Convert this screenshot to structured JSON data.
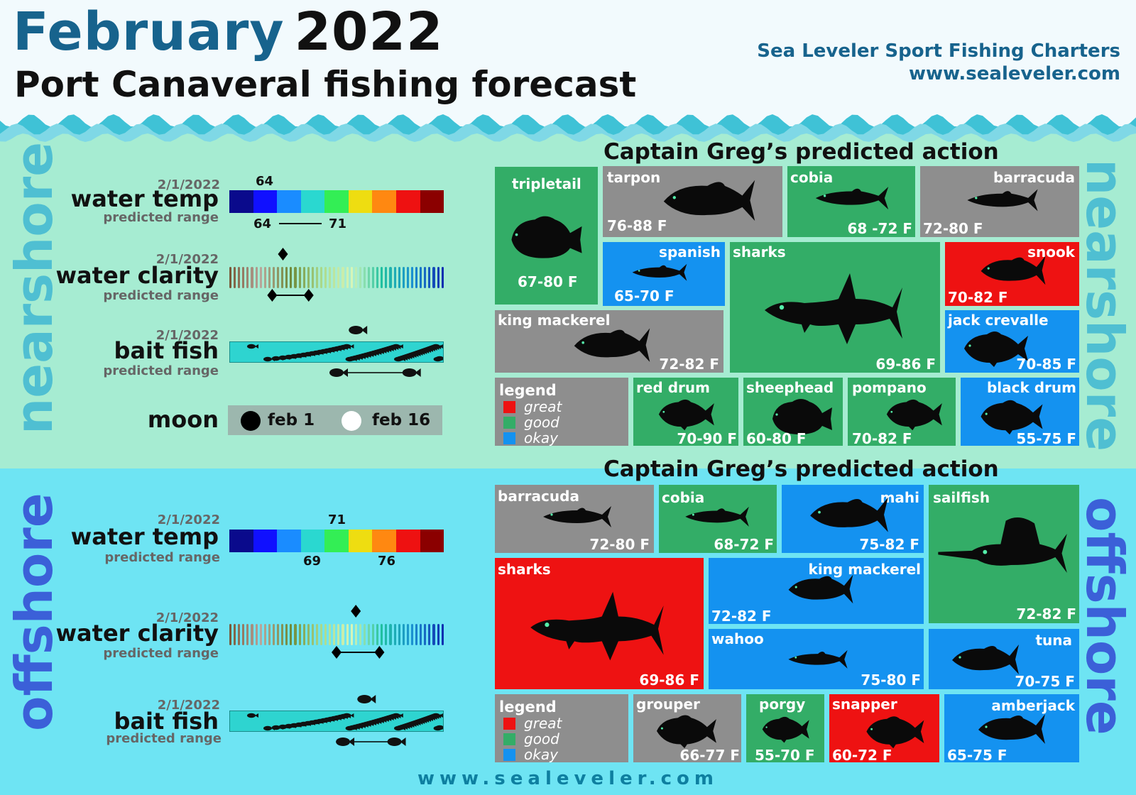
{
  "header": {
    "month": "February",
    "year": "2022",
    "subtitle": "Port Canaveral fishing forecast",
    "company": "Sea Leveler Sport Fishing Charters",
    "url": "www.sealeveler.com"
  },
  "colors": {
    "great": "#ee1212",
    "good": "#33ad67",
    "okay": "#1492f0",
    "neutral": "#8e8e8e",
    "nearshore_bg": "#a6ecd2",
    "offshore_bg": "#6ee4f3",
    "title_blue": "#17638d"
  },
  "temp_scale": [
    "#0a0a8c",
    "#1010ff",
    "#1a8cff",
    "#2ad8d0",
    "#33ee55",
    "#eedd11",
    "#ff8811",
    "#ee1111",
    "#8b0000"
  ],
  "nearshore": {
    "label": "nearshore",
    "conditions": {
      "water_temp": {
        "date": "2/1/2022",
        "label": "water temp",
        "sub": "predicted range",
        "current": "64",
        "range_low": "64",
        "range_high": "71",
        "dash": "—"
      },
      "water_clarity": {
        "date": "2/1/2022",
        "label": "water clarity",
        "sub": "predicted range",
        "current_level": 0.25,
        "range_level": [
          0.2,
          0.37
        ]
      },
      "bait_fish": {
        "date": "2/1/2022",
        "label": "bait fish",
        "sub": "predicted range",
        "current_level": 0.59,
        "range_level": [
          0.5,
          0.84
        ]
      },
      "moon": {
        "label": "moon",
        "new_moon": "feb 1",
        "full_moon": "feb 16"
      }
    },
    "action_title": "Captain Greg’s predicted action",
    "species": [
      {
        "name": "tripletail",
        "temp": "67-80 F",
        "rating": "good",
        "icon": "tripletail-icon"
      },
      {
        "name": "tarpon",
        "temp": "76-88 F",
        "rating": "neutral",
        "icon": "tarpon-icon"
      },
      {
        "name": "cobia",
        "temp": "68 -72 F",
        "rating": "good",
        "icon": "cobia-icon"
      },
      {
        "name": "barracuda",
        "temp": "72-80 F",
        "rating": "neutral",
        "icon": "barracuda-icon"
      },
      {
        "name": "spanish",
        "temp": "65-70 F",
        "rating": "okay",
        "icon": "spanish-mackerel-icon"
      },
      {
        "name": "sharks",
        "temp": "69-86 F",
        "rating": "good",
        "icon": "shark-icon"
      },
      {
        "name": "snook",
        "temp": "70-82 F",
        "rating": "great",
        "icon": "snook-icon"
      },
      {
        "name": "king mackerel",
        "temp": "72-82 F",
        "rating": "neutral",
        "icon": "king-mackerel-icon"
      },
      {
        "name": "jack crevalle",
        "temp": "70-85 F",
        "rating": "okay",
        "icon": "jack-crevalle-icon"
      },
      {
        "name": "red drum",
        "temp": "70-90 F",
        "rating": "good",
        "icon": "red-drum-icon"
      },
      {
        "name": "sheephead",
        "temp": "60-80 F",
        "rating": "good",
        "icon": "sheephead-icon"
      },
      {
        "name": "pompano",
        "temp": "70-82 F",
        "rating": "good",
        "icon": "pompano-icon"
      },
      {
        "name": "black drum",
        "temp": "55-75 F",
        "rating": "okay",
        "icon": "black-drum-icon"
      }
    ],
    "legend": {
      "title": "legend",
      "great": "great",
      "good": "good",
      "okay": "okay"
    }
  },
  "offshore": {
    "label": "offshore",
    "conditions": {
      "water_temp": {
        "date": "2/1/2022",
        "label": "water temp",
        "sub": "predicted range",
        "current": "71",
        "range_low": "69",
        "range_high": "76"
      },
      "water_clarity": {
        "date": "2/1/2022",
        "label": "water clarity",
        "sub": "predicted range",
        "current_level": 0.59,
        "range_level": [
          0.5,
          0.7
        ]
      },
      "bait_fish": {
        "date": "2/1/2022",
        "label": "bait fish",
        "sub": "predicted range",
        "current_level": 0.63,
        "range_level": [
          0.53,
          0.77
        ]
      }
    },
    "action_title": "Captain Greg’s predicted action",
    "species": [
      {
        "name": "barracuda",
        "temp": "72-80 F",
        "rating": "neutral",
        "icon": "barracuda-icon"
      },
      {
        "name": "cobia",
        "temp": "68-72 F",
        "rating": "good",
        "icon": "cobia-icon"
      },
      {
        "name": "mahi",
        "temp": "75-82 F",
        "rating": "okay",
        "icon": "mahi-icon"
      },
      {
        "name": "sailfish",
        "temp": "72-82 F",
        "rating": "good",
        "icon": "sailfish-icon"
      },
      {
        "name": "sharks",
        "temp": "69-86 F",
        "rating": "great",
        "icon": "shark-icon"
      },
      {
        "name": "king mackerel",
        "temp": "72-82 F",
        "rating": "okay",
        "icon": "king-mackerel-icon"
      },
      {
        "name": "wahoo",
        "temp": "75-80 F",
        "rating": "okay",
        "icon": "wahoo-icon"
      },
      {
        "name": "tuna",
        "temp": "70-75 F",
        "rating": "okay",
        "icon": "tuna-icon"
      },
      {
        "name": "grouper",
        "temp": "66-77 F",
        "rating": "neutral",
        "icon": "grouper-icon"
      },
      {
        "name": "porgy",
        "temp": "55-70 F",
        "rating": "good",
        "icon": "porgy-icon"
      },
      {
        "name": "snapper",
        "temp": "60-72 F",
        "rating": "great",
        "icon": "snapper-icon"
      },
      {
        "name": "amberjack",
        "temp": "65-75 F",
        "rating": "okay",
        "icon": "amberjack-icon"
      }
    ],
    "legend": {
      "title": "legend",
      "great": "great",
      "good": "good",
      "okay": "okay"
    }
  },
  "footer": "www.sealeveler.com"
}
